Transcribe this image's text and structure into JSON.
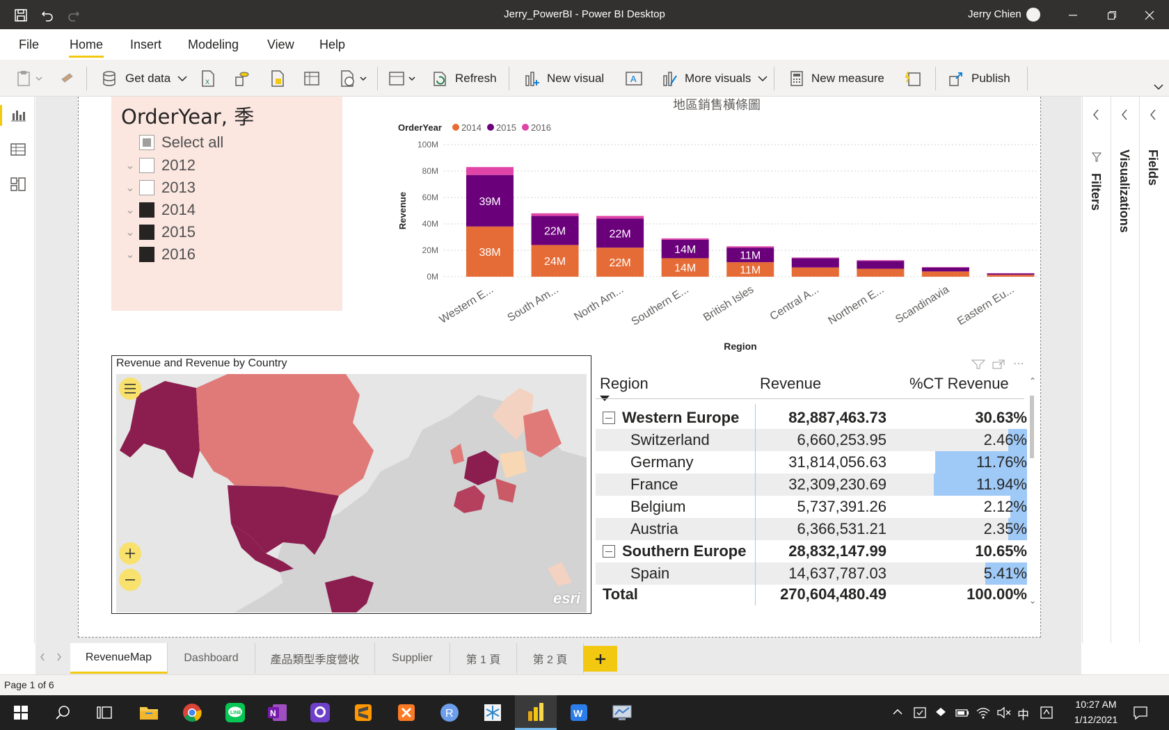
{
  "window": {
    "title": "Jerry_PowerBI - Power BI Desktop",
    "user": "Jerry Chien"
  },
  "menu_tabs": [
    "File",
    "Home",
    "Insert",
    "Modeling",
    "View",
    "Help"
  ],
  "ribbon": {
    "get_data": "Get data",
    "refresh": "Refresh",
    "new_visual": "New visual",
    "more_visuals": "More visuals",
    "new_measure": "New measure",
    "publish": "Publish"
  },
  "slicer": {
    "title": "OrderYear, 季",
    "items": [
      {
        "label": "Select all",
        "state": "partial"
      },
      {
        "label": "2012",
        "state": "off"
      },
      {
        "label": "2013",
        "state": "off"
      },
      {
        "label": "2014",
        "state": "on"
      },
      {
        "label": "2015",
        "state": "on"
      },
      {
        "label": "2016",
        "state": "on"
      }
    ]
  },
  "chart_data": {
    "type": "bar",
    "stacked": true,
    "title": "地區銷售橫條圖",
    "legend_title": "OrderYear",
    "legend_position": "top-left",
    "xlabel": "Region",
    "ylabel": "Revenue",
    "ylim": [
      0,
      100
    ],
    "y_ticks": [
      "0M",
      "20M",
      "40M",
      "60M",
      "80M",
      "100M"
    ],
    "grid": true,
    "categories": [
      "Western E...",
      "South Am...",
      "North Am...",
      "Southern E...",
      "British Isles",
      "Central A...",
      "Northern E...",
      "Scandinavia",
      "Eastern Eu..."
    ],
    "series": [
      {
        "name": "2014",
        "color": "#e66c37",
        "values": [
          38,
          24,
          22,
          14,
          11,
          7,
          6,
          4,
          1.5
        ],
        "labels": [
          "38M",
          "24M",
          "22M",
          "14M",
          "11M",
          "",
          "",
          "",
          ""
        ]
      },
      {
        "name": "2015",
        "color": "#6b007b",
        "values": [
          39,
          22,
          22,
          14,
          11,
          7,
          6,
          3,
          1
        ],
        "labels": [
          "39M",
          "22M",
          "22M",
          "14M",
          "11M",
          "",
          "",
          "",
          ""
        ]
      },
      {
        "name": "2016",
        "color": "#e044a7",
        "values": [
          6,
          2,
          2,
          1,
          1,
          0.5,
          0.5,
          0.3,
          0.2
        ],
        "labels": [
          "",
          "",
          "",
          "",
          "",
          "",
          "",
          "",
          ""
        ]
      }
    ]
  },
  "map": {
    "title": "Revenue and Revenue by Country",
    "attribution": "esri"
  },
  "table": {
    "headers": [
      "Region",
      "Revenue",
      "%CT Revenue"
    ],
    "rows": [
      {
        "label": "Western Europe",
        "revenue": "82,887,463.73",
        "pct": "30.63%",
        "group": true,
        "bar": 0
      },
      {
        "label": "Switzerland",
        "revenue": "6,660,253.95",
        "pct": "2.46%",
        "group": false,
        "bar": 0.2
      },
      {
        "label": "Germany",
        "revenue": "31,814,056.63",
        "pct": "11.76%",
        "group": false,
        "bar": 0.985
      },
      {
        "label": "France",
        "revenue": "32,309,230.69",
        "pct": "11.94%",
        "group": false,
        "bar": 1.0
      },
      {
        "label": "Belgium",
        "revenue": "5,737,391.26",
        "pct": "2.12%",
        "group": false,
        "bar": 0.18
      },
      {
        "label": "Austria",
        "revenue": "6,366,531.21",
        "pct": "2.35%",
        "group": false,
        "bar": 0.2
      },
      {
        "label": "Southern Europe",
        "revenue": "28,832,147.99",
        "pct": "10.65%",
        "group": true,
        "bar": 0
      },
      {
        "label": "Spain",
        "revenue": "14,637,787.03",
        "pct": "5.41%",
        "group": false,
        "bar": 0.45
      }
    ],
    "total": {
      "label": "Total",
      "revenue": "270,604,480.49",
      "pct": "100.00%"
    }
  },
  "panes": {
    "filters": "Filters",
    "visualizations": "Visualizations",
    "fields": "Fields"
  },
  "page_tabs": [
    "RevenueMap",
    "Dashboard",
    "產品類型季度營收",
    "Supplier",
    "第 1 頁",
    "第 2 頁"
  ],
  "status": {
    "page": "Page 1 of 6"
  },
  "clock": {
    "time": "10:27 AM",
    "date": "1/12/2021",
    "ime": "中"
  }
}
